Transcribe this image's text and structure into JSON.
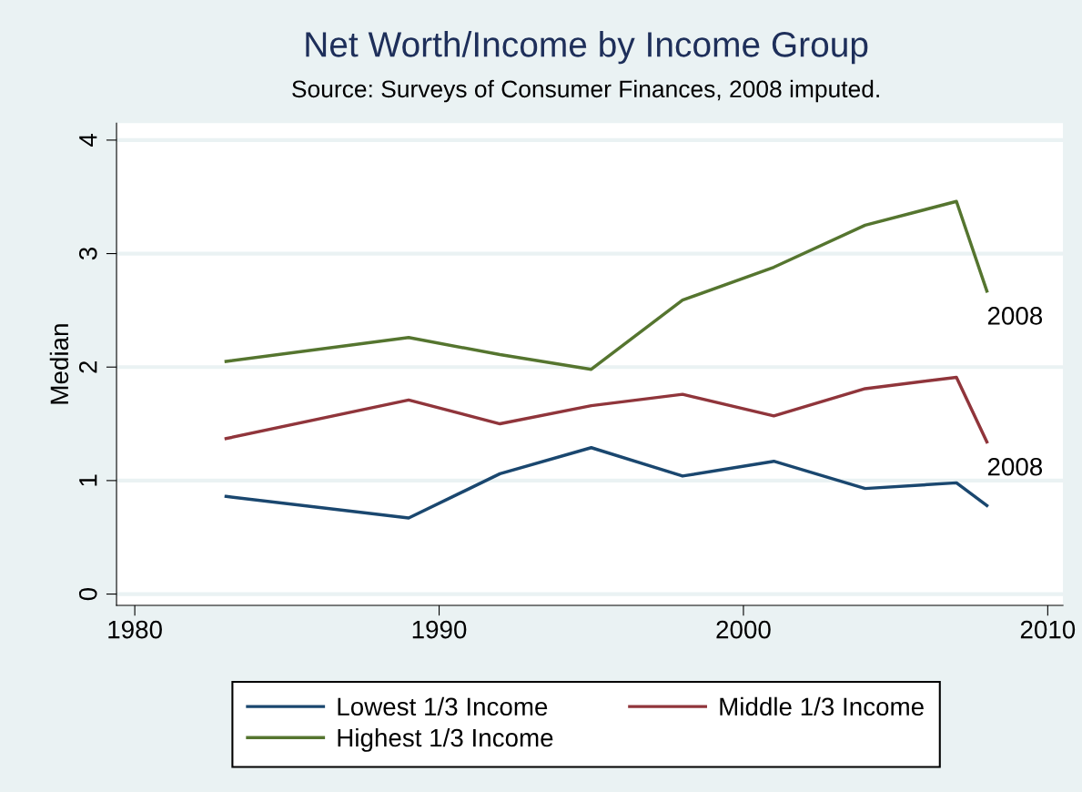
{
  "chart_data": {
    "type": "line",
    "title": "Net Worth/Income by Income Group",
    "subtitle": "Source: Surveys of Consumer Finances, 2008 imputed.",
    "ylabel": "Median",
    "x": [
      1983,
      1989,
      1992,
      1995,
      1998,
      2001,
      2004,
      2007,
      2008
    ],
    "series": [
      {
        "name": "Lowest 1/3 Income",
        "color": "#1a476f",
        "values": [
          0.86,
          0.67,
          1.06,
          1.29,
          1.04,
          1.17,
          0.93,
          0.98,
          0.78
        ]
      },
      {
        "name": "Middle 1/3 Income",
        "color": "#90353b",
        "values": [
          1.37,
          1.71,
          1.5,
          1.66,
          1.76,
          1.57,
          1.81,
          1.91,
          1.34
        ]
      },
      {
        "name": "Highest 1/3 Income",
        "color": "#55752f",
        "values": [
          2.05,
          2.26,
          2.11,
          1.98,
          2.59,
          2.88,
          3.25,
          3.46,
          2.67
        ]
      }
    ],
    "annotations": [
      {
        "text": "2008",
        "x": 2008,
        "y": 2.67
      },
      {
        "text": "2008",
        "x": 2008,
        "y": 1.34
      }
    ],
    "xlim": [
      1979.4,
      2010.5
    ],
    "xticks": [
      1980,
      1990,
      2000,
      2010
    ],
    "ylim": [
      -0.1,
      4.15
    ],
    "yticks": [
      0,
      1,
      2,
      3,
      4
    ],
    "grid": "y",
    "legend": "bottom",
    "marker": "none",
    "line_style": "solid"
  }
}
